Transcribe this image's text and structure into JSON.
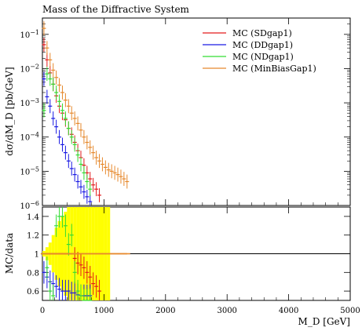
{
  "chart_data": {
    "type": "scatter",
    "title": "Mass of the Diffractive System",
    "ylabel_main": "dσ/dM_D [pb/GeV]",
    "ylabel_ratio": "MC/data",
    "xlabel": "M_D [GeV]",
    "xlim": [
      0,
      5000
    ],
    "ylim_main": [
      1e-06,
      0.3
    ],
    "ylim_ratio": [
      0.5,
      1.5
    ],
    "y_scale_main": "log",
    "x_ticks": [
      "0",
      "1000",
      "2000",
      "3000",
      "4000",
      "5000"
    ],
    "y_ticks_main": [
      "10^-6",
      "10^-5",
      "10^-4",
      "10^-3",
      "10^-2",
      "10^-1"
    ],
    "y_ticks_ratio": [
      "0.6",
      "0.8",
      "1",
      "1.2",
      "1.4"
    ],
    "legend_position": "top-right",
    "series": [
      {
        "name": "MC (SDgap1)",
        "color": "#e31a1c",
        "x": [
          25,
          75,
          125,
          175,
          225,
          275,
          325,
          375,
          425,
          475,
          525,
          575,
          625,
          675,
          725,
          775,
          825,
          875,
          925
        ],
        "y": [
          0.05,
          0.018,
          0.0075,
          0.0035,
          0.0016,
          0.0008,
          0.0005,
          0.00032,
          0.00018,
          0.00012,
          7e-05,
          4e-05,
          2.5e-05,
          1.5e-05,
          9e-06,
          6e-06,
          4e-06,
          3e-06,
          2e-06
        ],
        "ratio": [
          1.0,
          1.0,
          1.0,
          1.0,
          1.0,
          1.0,
          1.0,
          1.0,
          1.0,
          1.0,
          0.95,
          0.9,
          0.88,
          0.85,
          0.8,
          0.75,
          0.68,
          0.65,
          0.6
        ]
      },
      {
        "name": "MC (DDgap1)",
        "color": "#1a1ae3",
        "x": [
          25,
          75,
          125,
          175,
          225,
          275,
          325,
          375,
          425,
          475,
          525,
          575,
          625,
          675,
          725,
          775
        ],
        "y": [
          0.005,
          0.0015,
          0.0008,
          0.00035,
          0.0002,
          0.0001,
          6e-05,
          3.5e-05,
          2e-05,
          1.2e-05,
          8e-06,
          5e-06,
          3.5e-06,
          2.5e-06,
          1.8e-06,
          1.3e-06
        ],
        "ratio": [
          0.8,
          0.75,
          0.7,
          0.68,
          0.65,
          0.62,
          0.6,
          0.6,
          0.6,
          0.58,
          0.58,
          0.56,
          0.55,
          0.55,
          0.55,
          0.55
        ]
      },
      {
        "name": "MC (NDgap1)",
        "color": "#33dd33",
        "x": [
          25,
          75,
          125,
          175,
          225,
          275,
          325,
          375,
          425,
          475,
          525,
          575,
          625,
          675,
          725,
          775
        ],
        "y": [
          0.0006,
          0.007,
          0.005,
          0.0035,
          0.002,
          0.0011,
          0.0006,
          0.00035,
          0.00018,
          0.0001,
          6e-05,
          3e-05,
          1.6e-05,
          9e-06,
          5e-06,
          3e-06
        ],
        "ratio": [
          1.0,
          0.85,
          0.6,
          0.55,
          1.3,
          1.4,
          1.4,
          1.3,
          1.1,
          1.2,
          0.8,
          0.6,
          0.55,
          0.5,
          0.5,
          0.5
        ]
      },
      {
        "name": "MC (MinBiasGap1)",
        "color": "#e6892d",
        "x": [
          25,
          75,
          125,
          175,
          225,
          275,
          325,
          375,
          425,
          475,
          525,
          575,
          625,
          675,
          725,
          775,
          825,
          875,
          925,
          975,
          1025,
          1075,
          1125,
          1175,
          1225,
          1275,
          1325,
          1375
        ],
        "y": [
          0.15,
          0.04,
          0.018,
          0.009,
          0.0055,
          0.0033,
          0.002,
          0.0012,
          0.0008,
          0.0005,
          0.00035,
          0.00025,
          0.00016,
          0.0001,
          7e-05,
          5e-05,
          3.5e-05,
          2.5e-05,
          2e-05,
          1.6e-05,
          1.3e-05,
          1.1e-05,
          1e-05,
          9e-06,
          8e-06,
          7e-06,
          6e-06,
          5e-06
        ],
        "ratio": [
          1.0,
          1.0,
          1.0,
          1.0,
          1.0,
          1.0,
          1.0,
          1.0,
          1.0,
          1.0,
          1.0,
          1.0,
          1.0,
          1.0,
          1.0,
          1.0,
          1.0,
          1.0,
          1.0,
          1.0,
          1.0,
          1.0,
          1.0,
          1.0,
          1.0,
          1.0,
          1.0,
          1.0
        ]
      }
    ],
    "data_band": {
      "x": [
        25,
        75,
        125,
        175,
        225,
        275,
        325,
        375,
        425,
        475,
        525,
        575,
        625,
        675,
        725,
        775,
        825,
        875,
        925,
        975,
        1025,
        1075
      ],
      "lo": [
        0.97,
        0.93,
        0.88,
        0.8,
        0.72,
        0.65,
        0.6,
        0.55,
        0.5,
        0.5,
        0.5,
        0.5,
        0.5,
        0.5,
        0.5,
        0.5,
        0.5,
        0.5,
        0.5,
        0.5,
        0.5,
        0.5
      ],
      "hi": [
        1.03,
        1.07,
        1.12,
        1.2,
        1.28,
        1.35,
        1.4,
        1.45,
        1.5,
        1.5,
        1.5,
        1.5,
        1.5,
        1.5,
        1.5,
        1.5,
        1.5,
        1.5,
        1.5,
        1.5,
        1.5,
        1.5
      ],
      "color": "#ffff00"
    }
  }
}
